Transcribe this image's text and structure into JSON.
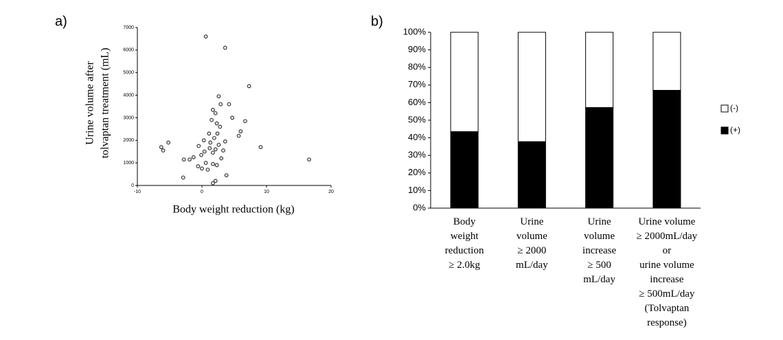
{
  "chart_data": [
    {
      "type": "scatter",
      "panel_label": "a)",
      "x_label": "Body weight reduction (kg)",
      "y_label": [
        "Urine volume  after",
        "tolvaptan  treatment (mL)"
      ],
      "xlim": [
        -10,
        20
      ],
      "xticks": [
        -10,
        0,
        10,
        20
      ],
      "ylim": [
        0,
        7000
      ],
      "yticks": [
        0,
        1000,
        2000,
        3000,
        4000,
        5000,
        6000,
        7000
      ],
      "color": "#333333",
      "x": [
        0.6,
        3.6,
        7.3,
        2.6,
        2.9,
        4.2,
        1.7,
        2.1,
        4.7,
        6.7,
        1.5,
        2.3,
        2.8,
        6,
        1.1,
        2.4,
        5.7,
        3.6,
        1.9,
        0.3,
        1.3,
        2.6,
        9.1,
        -0.5,
        -6.3,
        -6,
        -5.2,
        1.2,
        2.1,
        3.3,
        0.4,
        1.7,
        -0.1,
        3,
        -1.3,
        -1.9,
        -2.8,
        16.6,
        0.6,
        1.7,
        2.3,
        -0.6,
        0,
        0.9,
        3.8,
        -2.9,
        2.1,
        1.7
      ],
      "values": [
        6600,
        6100,
        4400,
        3950,
        3600,
        3600,
        3350,
        3200,
        3000,
        2850,
        2900,
        2750,
        2600,
        2400,
        2300,
        2300,
        2200,
        1950,
        2100,
        2000,
        1900,
        1800,
        1700,
        1750,
        1700,
        1550,
        1900,
        1650,
        1600,
        1550,
        1500,
        1450,
        1350,
        1200,
        1250,
        1150,
        1150,
        1150,
        1000,
        950,
        900,
        850,
        750,
        700,
        450,
        350,
        200,
        100
      ]
    },
    {
      "type": "stacked_bar",
      "panel_label": "b)",
      "categories": [
        "Body\nweight\nreduction\n≥ 2.0kg",
        "Urine\nvolume\n≥ 2000\nmL/day",
        "Urine\nvolume\nincrease\n≥ 500\nmL/day",
        "Urine volume\n≥ 2000mL/day\nor\nurine volume\nincrease\n≥ 500mL/day\n(Tolvaptan\nresponse)"
      ],
      "series": [
        {
          "name": "(+)",
          "color": "#000000",
          "values": [
            43.5,
            37.8,
            57.2,
            67
          ]
        },
        {
          "name": "(-)",
          "color": "#ffffff",
          "values": [
            56.5,
            62.2,
            42.8,
            33
          ]
        }
      ],
      "ylim": [
        0,
        100
      ],
      "yticks": [
        {
          "value": 0,
          "label": "0%"
        },
        {
          "value": 10,
          "label": "10%"
        },
        {
          "value": 20,
          "label": "20%"
        },
        {
          "value": 30,
          "label": "30%"
        },
        {
          "value": 40,
          "label": "40%"
        },
        {
          "value": 50,
          "label": "50%"
        },
        {
          "value": 60,
          "label": "60%"
        },
        {
          "value": 70,
          "label": "70%"
        },
        {
          "value": 80,
          "label": "80%"
        },
        {
          "value": 90,
          "label": "90%"
        },
        {
          "value": 100,
          "label": "100%"
        }
      ],
      "legend": "right"
    }
  ]
}
